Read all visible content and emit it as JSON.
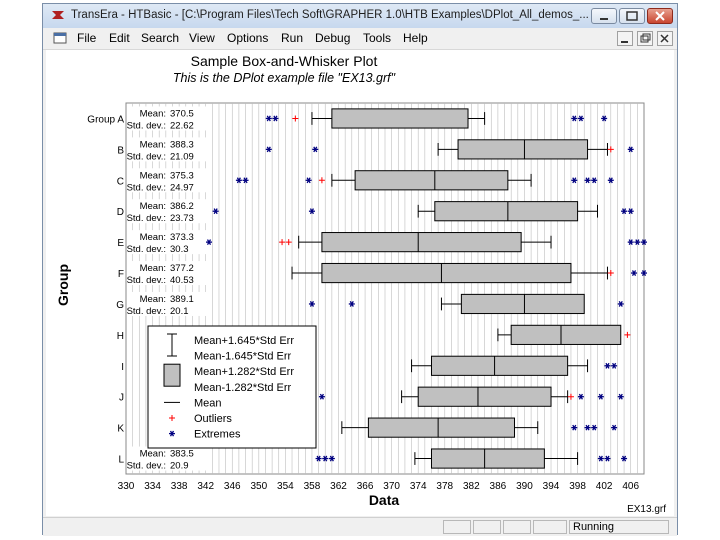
{
  "window": {
    "title": "TransEra - HTBasic - [C:\\Program Files\\Tech Soft\\GRAPHER 1.0\\HTB Examples\\DPlot_All_demos_...",
    "status": "Running"
  },
  "menu": [
    "File",
    "Edit",
    "Search",
    "View",
    "Options",
    "Run",
    "Debug",
    "Tools",
    "Help"
  ],
  "colors": {
    "box_fill": "#c0c0c0",
    "outlier": "#ff0000",
    "extreme": "#000080",
    "grid": "#bdbdbd"
  },
  "plot": {
    "title": "Sample Box-and-Whisker Plot",
    "subtitle": "This is the DPlot example file \"EX13.grf\"",
    "footnote": "EX13.grf"
  },
  "chart_data": {
    "type": "box",
    "title": "Sample Box-and-Whisker Plot",
    "subtitle": "This is the DPlot example file \"EX13.grf\"",
    "xlabel": "Data",
    "ylabel": "Group",
    "xlim": [
      330,
      408
    ],
    "xticks": [
      330,
      334,
      338,
      342,
      346,
      350,
      354,
      358,
      362,
      366,
      370,
      374,
      378,
      382,
      386,
      390,
      394,
      398,
      402,
      406
    ],
    "grid": true,
    "mean_label": "Mean:",
    "std_label": "Std. dev.:",
    "groups": [
      {
        "label": "Group A",
        "mean": "370.5",
        "std": "22.62",
        "lo": 361.0,
        "hi": 381.5,
        "wlo": 358.0,
        "whi": 384.0,
        "outliers": [
          355.5
        ],
        "extremes": [
          351.5,
          352.5,
          397.5,
          398.5,
          402.0
        ]
      },
      {
        "label": "B",
        "mean": "388.3",
        "std": "21.09",
        "lo": 380.0,
        "hi": 399.5,
        "wlo": 377.0,
        "whi": 402.5,
        "median": 390.0,
        "outliers": [
          403.0
        ],
        "extremes": [
          351.5,
          358.5,
          406.0
        ]
      },
      {
        "label": "C",
        "mean": "375.3",
        "std": "24.97",
        "lo": 364.5,
        "hi": 387.5,
        "wlo": 361.0,
        "whi": 391.0,
        "median": 376.5,
        "outliers": [
          359.5
        ],
        "extremes": [
          347.0,
          348.0,
          357.5,
          397.5,
          399.5,
          400.5,
          403.0
        ]
      },
      {
        "label": "D",
        "mean": "386.2",
        "std": "23.73",
        "lo": 376.5,
        "hi": 398.0,
        "wlo": 374.0,
        "whi": 401.0,
        "median": 387.5,
        "outliers": [],
        "extremes": [
          343.5,
          358.0,
          405.0,
          406.0
        ]
      },
      {
        "label": "E",
        "mean": "373.3",
        "std": "30.3",
        "lo": 359.5,
        "hi": 389.5,
        "wlo": 356.0,
        "whi": 394.0,
        "median": 374.0,
        "outliers": [
          353.5,
          354.5
        ],
        "extremes": [
          342.5,
          406.0,
          407.0,
          408.0
        ]
      },
      {
        "label": "F",
        "mean": "377.2",
        "std": "40.53",
        "lo": 359.5,
        "hi": 397.0,
        "wlo": 355.0,
        "whi": 402.5,
        "median": 377.5,
        "outliers": [
          403.0
        ],
        "extremes": [
          406.5,
          408.0
        ]
      },
      {
        "label": "G",
        "mean": "389.1",
        "std": "20.1",
        "lo": 380.5,
        "hi": 399.0,
        "wlo": 377.5,
        "whi": 377.5,
        "median": 390.0,
        "outliers": [],
        "extremes": [
          358.0,
          364.0,
          404.5
        ]
      },
      {
        "label": "H",
        "mean": "",
        "std": "",
        "lo": 388.0,
        "hi": 404.5,
        "wlo": 386.0,
        "whi": 404.5,
        "median": 395.5,
        "outliers": [
          405.5
        ],
        "extremes": []
      },
      {
        "label": "I",
        "mean": "",
        "std": "",
        "lo": 376.0,
        "hi": 396.5,
        "wlo": 373.0,
        "whi": 399.5,
        "median": 385.5,
        "outliers": [],
        "extremes": [
          402.5,
          403.5
        ]
      },
      {
        "label": "J",
        "mean": "",
        "std": "",
        "lo": 374.0,
        "hi": 394.0,
        "wlo": 371.5,
        "whi": 396.5,
        "median": 383.0,
        "outliers": [
          397.0
        ],
        "extremes": [
          359.5,
          398.5,
          401.5,
          404.5
        ]
      },
      {
        "label": "K",
        "mean": "",
        "std": "",
        "lo": 366.5,
        "hi": 388.5,
        "wlo": 362.5,
        "whi": 392.0,
        "median": 377.0,
        "outliers": [],
        "extremes": [
          397.5,
          399.5,
          400.5,
          403.5
        ]
      },
      {
        "label": "L",
        "mean": "383.5",
        "std": "20.9",
        "lo": 376.0,
        "hi": 393.0,
        "wlo": 373.5,
        "whi": 398.0,
        "median": 384.0,
        "outliers": [],
        "extremes": [
          359.0,
          360.0,
          361.0,
          401.5,
          402.5,
          405.0
        ]
      }
    ],
    "legend": {
      "position": "lower-left",
      "entries": [
        {
          "label": "Mean+1.645*Std Err",
          "symbol": "whisker"
        },
        {
          "label": "Mean-1.645*Std Err",
          "symbol": "none"
        },
        {
          "label": "Mean+1.282*Std Err",
          "symbol": "box"
        },
        {
          "label": "Mean-1.282*Std Err",
          "symbol": "none"
        },
        {
          "label": "Mean",
          "symbol": "line"
        },
        {
          "label": "Outliers",
          "symbol": "plus"
        },
        {
          "label": "Extremes",
          "symbol": "star"
        }
      ]
    }
  }
}
